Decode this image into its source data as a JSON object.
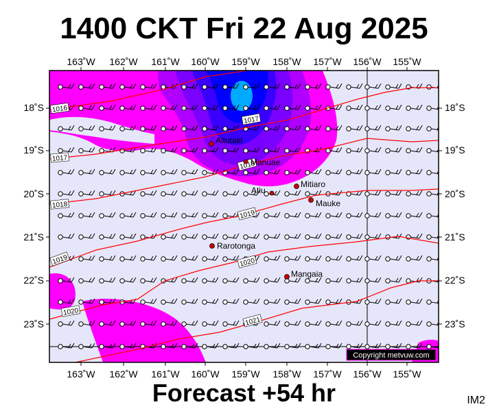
{
  "header": {
    "title": "1400 CKT Fri 22 Aug 2025"
  },
  "footer": {
    "forecast": "Forecast +54 hr",
    "tag": "IM2",
    "copyright": "Copyright metvuw.com"
  },
  "colors": {
    "background": "#e6e6fa",
    "isobar": "#ff0000",
    "rain_light": "#ff00ff",
    "rain_mid": "#b000ff",
    "rain_heavy": "#5a00ff",
    "rain_core": "#0000ff",
    "rain_peak": "#00aaff",
    "wind_barb": "#000000",
    "island": "#cc0000"
  },
  "axes": {
    "longitude_ticks": [
      "163˚W",
      "162˚W",
      "161˚W",
      "160˚W",
      "159˚W",
      "158˚W",
      "157˚W",
      "156˚W",
      "155˚W"
    ],
    "latitude_ticks": [
      "18˚S",
      "19˚S",
      "20˚S",
      "21˚S",
      "22˚S",
      "23˚S"
    ]
  },
  "isobars": [
    "1016",
    "1017",
    "1017",
    "1018",
    "1018",
    "1019",
    "1019",
    "1020",
    "1020",
    "1021"
  ],
  "islands": [
    {
      "name": "Aitutaki"
    },
    {
      "name": "Manuae"
    },
    {
      "name": "Mitiaro"
    },
    {
      "name": "Atiu"
    },
    {
      "name": "Mauke"
    },
    {
      "name": "Rarotonga"
    },
    {
      "name": "Mangaia"
    }
  ]
}
